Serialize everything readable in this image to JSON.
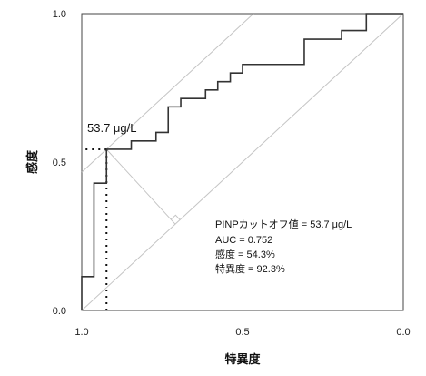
{
  "chart_data": {
    "type": "line",
    "title": "",
    "xlabel": "特異度",
    "ylabel": "感度",
    "x_reversed": true,
    "xlim": [
      1.0,
      0.0
    ],
    "ylim": [
      0.0,
      1.0
    ],
    "x_tick_labels": [
      "1.0",
      "0.5",
      "0.0"
    ],
    "y_tick_labels": [
      "0.0",
      "0.5",
      "1.0"
    ],
    "grid": false,
    "legend": "none",
    "series": [
      {
        "points": [
          [
            1.0,
            0.0
          ],
          [
            1.0,
            0.114
          ],
          [
            0.962,
            0.114
          ],
          [
            0.962,
            0.429
          ],
          [
            0.923,
            0.429
          ],
          [
            0.923,
            0.543
          ],
          [
            0.923,
            0.543
          ],
          [
            0.846,
            0.543
          ],
          [
            0.846,
            0.571
          ],
          [
            0.769,
            0.571
          ],
          [
            0.769,
            0.6
          ],
          [
            0.731,
            0.6
          ],
          [
            0.731,
            0.686
          ],
          [
            0.692,
            0.686
          ],
          [
            0.692,
            0.714
          ],
          [
            0.615,
            0.714
          ],
          [
            0.615,
            0.743
          ],
          [
            0.577,
            0.743
          ],
          [
            0.577,
            0.771
          ],
          [
            0.538,
            0.771
          ],
          [
            0.538,
            0.8
          ],
          [
            0.5,
            0.8
          ],
          [
            0.5,
            0.829
          ],
          [
            0.308,
            0.829
          ],
          [
            0.308,
            0.914
          ],
          [
            0.192,
            0.914
          ],
          [
            0.192,
            0.943
          ],
          [
            0.115,
            0.943
          ],
          [
            0.115,
            1.0
          ],
          [
            0.0,
            1.0
          ]
        ]
      }
    ],
    "reference_line": [
      [
        1.0,
        0.0
      ],
      [
        0.0,
        1.0
      ]
    ],
    "cutoff_point": {
      "x": 0.923,
      "y": 0.543,
      "label": "53.7 μg/L"
    },
    "annotations": [
      "PINPカットオフ値 = 53.7 μg/L",
      "AUC = 0.752",
      "感度 = 54.3%",
      "特異度 = 92.3%"
    ],
    "colors": {
      "roc": "#333333",
      "reference": "#c4c4c4",
      "guide": "#111111"
    }
  }
}
